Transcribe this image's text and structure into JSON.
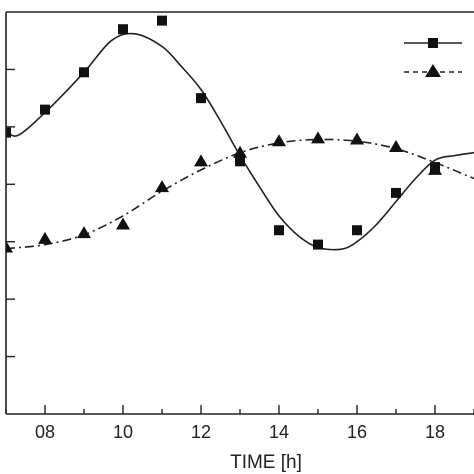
{
  "chart_data": {
    "type": "line",
    "xlabel": "TIME [h]",
    "ylabel": "",
    "x_ticks": [
      "08",
      "10",
      "12",
      "14",
      "16",
      "18"
    ],
    "x_tick_values": [
      8,
      10,
      12,
      14,
      16,
      18
    ],
    "xlim": [
      7,
      19
    ],
    "ylim": [
      0,
      7
    ],
    "y_tick_values": [
      1,
      2,
      3,
      4,
      5,
      6
    ],
    "y_tick_labels_visible": false,
    "grid": false,
    "legend_placement": "top-right",
    "series": [
      {
        "marker": "square",
        "line_style": "solid",
        "points_x": [
          7,
          8,
          9,
          10,
          11,
          12,
          13,
          14,
          15,
          16,
          17,
          18
        ],
        "points_y": [
          4.9,
          5.3,
          5.95,
          6.7,
          6.85,
          5.5,
          4.4,
          3.2,
          2.95,
          3.2,
          3.85,
          4.3
        ],
        "curve_x": [
          7,
          7.3,
          8,
          9,
          9.7,
          10.3,
          11,
          11.5,
          12,
          12.5,
          13,
          13.6,
          14,
          14.5,
          15,
          15.6,
          16,
          16.5,
          17,
          17.5,
          18,
          18.5,
          19
        ],
        "curve_y": [
          4.95,
          4.85,
          5.25,
          5.95,
          6.5,
          6.62,
          6.4,
          6.05,
          5.65,
          5.1,
          4.5,
          3.85,
          3.45,
          3.1,
          2.9,
          2.87,
          3.0,
          3.3,
          3.7,
          4.1,
          4.42,
          4.5,
          4.55
        ]
      },
      {
        "marker": "triangle",
        "line_style": "dash-dot",
        "points_x": [
          7,
          8,
          9,
          10,
          11,
          12,
          13,
          14,
          15,
          16,
          17,
          18
        ],
        "points_y": [
          2.9,
          3.05,
          3.15,
          3.3,
          3.95,
          4.4,
          4.55,
          4.75,
          4.8,
          4.78,
          4.65,
          4.25
        ],
        "curve_x": [
          7,
          8,
          9,
          10,
          11,
          12,
          13,
          14,
          15,
          16,
          17,
          18,
          19
        ],
        "curve_y": [
          2.88,
          2.95,
          3.12,
          3.45,
          3.88,
          4.25,
          4.55,
          4.72,
          4.78,
          4.75,
          4.62,
          4.38,
          4.1
        ]
      }
    ]
  }
}
